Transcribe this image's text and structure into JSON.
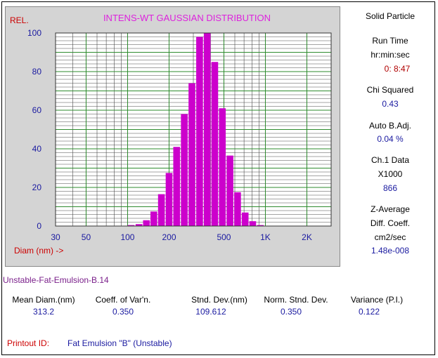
{
  "chart_data": {
    "type": "bar",
    "title": "INTENS-WT GAUSSIAN DISTRIBUTION",
    "ylabel": "REL.",
    "xlabel": "Diam (nm) ->",
    "x_scale": "log",
    "xlim": [
      30,
      3000
    ],
    "ylim": [
      0,
      100
    ],
    "y_ticks": [
      "0",
      "20",
      "40",
      "60",
      "80",
      "100"
    ],
    "x_ticks": [
      {
        "value": 30,
        "label": "30"
      },
      {
        "value": 50,
        "label": "50"
      },
      {
        "value": 100,
        "label": "100"
      },
      {
        "value": 200,
        "label": "200"
      },
      {
        "value": 500,
        "label": "500"
      },
      {
        "value": 1000,
        "label": "1K"
      },
      {
        "value": 2000,
        "label": "2K"
      }
    ],
    "bars": [
      {
        "x": 106,
        "y": 0.5
      },
      {
        "x": 121,
        "y": 1
      },
      {
        "x": 137,
        "y": 3
      },
      {
        "x": 155,
        "y": 7.5
      },
      {
        "x": 176,
        "y": 16.5
      },
      {
        "x": 200,
        "y": 27.5
      },
      {
        "x": 227,
        "y": 41
      },
      {
        "x": 258,
        "y": 58
      },
      {
        "x": 293,
        "y": 74
      },
      {
        "x": 333,
        "y": 98
      },
      {
        "x": 378,
        "y": 100
      },
      {
        "x": 429,
        "y": 85
      },
      {
        "x": 487,
        "y": 61
      },
      {
        "x": 553,
        "y": 36.5
      },
      {
        "x": 628,
        "y": 17.5
      },
      {
        "x": 713,
        "y": 7
      },
      {
        "x": 809,
        "y": 2.5
      },
      {
        "x": 919,
        "y": 0.5
      }
    ]
  },
  "side_panel": {
    "title": "Solid Particle",
    "run_time_label": "Run Time",
    "run_time_format": "hr:min:sec",
    "run_time_value": "0: 8:47",
    "chi_squared_label": "Chi Squared",
    "chi_squared_value": "0.43",
    "auto_badj_label": "Auto B.Adj.",
    "auto_badj_value": "0.04 %",
    "ch1_label": "Ch.1 Data",
    "ch1_multiplier": "X1000",
    "ch1_value": "866",
    "z_avg_label": "Z-Average",
    "diff_coeff_label": "Diff. Coeff.",
    "diff_units": "cm2/sec",
    "diff_value": "1.48e-008"
  },
  "sample_name": "Unstable-Fat-Emulsion-B.14",
  "stats": {
    "mean_diam": {
      "label": "Mean Diam.(nm)",
      "value": "313.2"
    },
    "coeff_var": {
      "label": "Coeff. of Var'n.",
      "value": "0.350"
    },
    "stnd_dev": {
      "label": "Stnd. Dev.(nm)",
      "value": "109.612"
    },
    "norm_stnd_dev": {
      "label": "Norm. Stnd. Dev.",
      "value": "0.350"
    },
    "variance": {
      "label": "Variance (P.I.)",
      "value": "0.122"
    }
  },
  "printout": {
    "label": "Printout ID:",
    "value": "Fat Emulsion \"B\" (Unstable)"
  },
  "colors": {
    "bar": "#cc00cc",
    "major_grid": "#2e8b2e",
    "minor_grid": "#4a4a4a",
    "axis_text": "#1a1aa0",
    "title": "#dd22dd",
    "label_red": "#cc0000"
  }
}
